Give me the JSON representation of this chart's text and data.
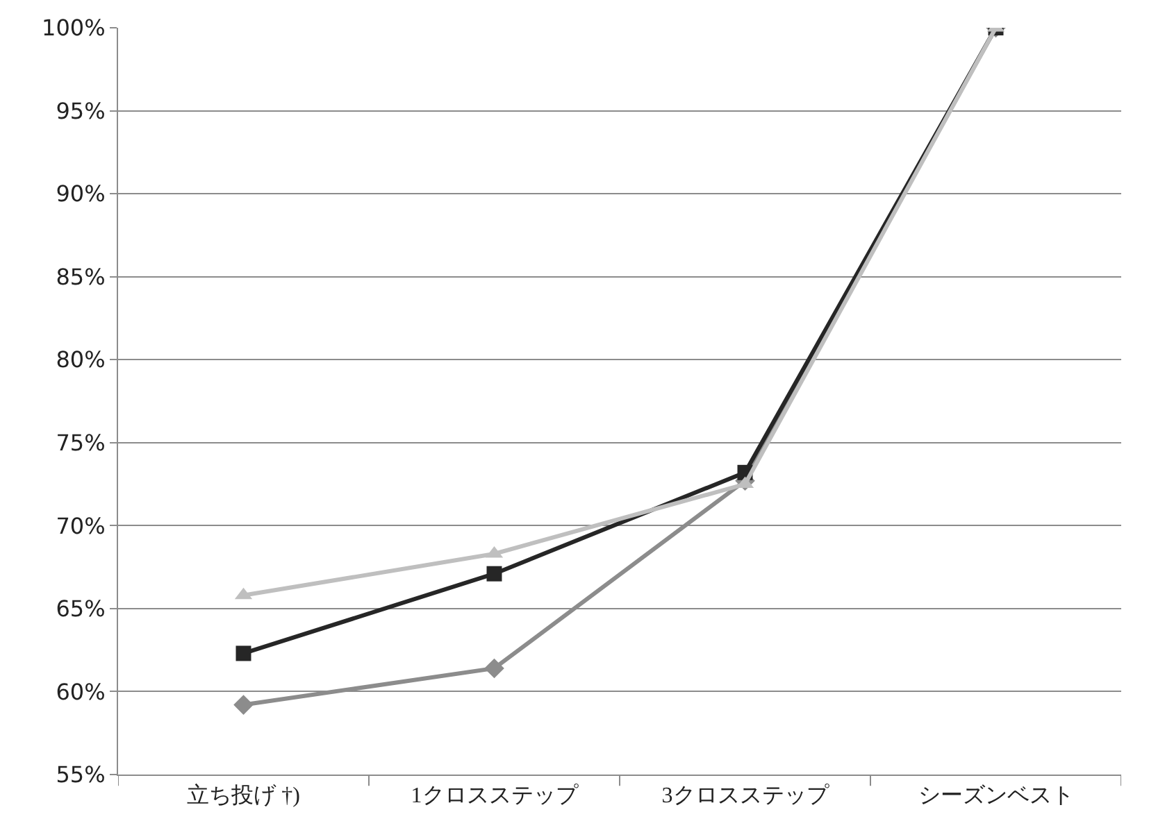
{
  "chart_data": {
    "type": "line",
    "categories": [
      "立ち投げ †)",
      "1クロスステップ",
      "3クロスステップ",
      "シーズンベスト"
    ],
    "series": [
      {
        "color": "#8c8c8c",
        "marker": "diamond",
        "values": [
          59.2,
          61.4,
          72.7,
          100
        ]
      },
      {
        "color": "#262626",
        "marker": "square",
        "values": [
          62.3,
          67.1,
          73.2,
          100
        ]
      },
      {
        "color": "#bfbfbf",
        "marker": "triangle",
        "values": [
          65.8,
          68.3,
          72.5,
          100
        ]
      }
    ],
    "ylim": [
      55,
      100
    ],
    "yticks": [
      {
        "value": 55,
        "label": "55%"
      },
      {
        "value": 60,
        "label": "60%"
      },
      {
        "value": 65,
        "label": "65%"
      },
      {
        "value": 70,
        "label": "70%"
      },
      {
        "value": 75,
        "label": "75%"
      },
      {
        "value": 80,
        "label": "80%"
      },
      {
        "value": 85,
        "label": "85%"
      },
      {
        "value": 90,
        "label": "90%"
      },
      {
        "value": 95,
        "label": "95%"
      },
      {
        "value": 100,
        "label": "100%"
      }
    ],
    "grid": "y"
  }
}
